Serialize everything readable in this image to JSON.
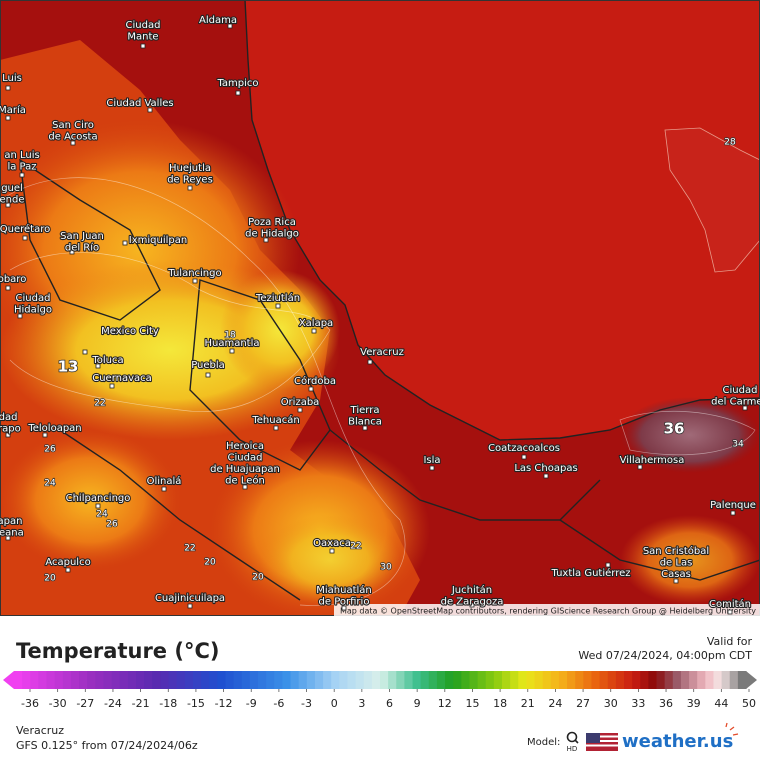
{
  "map": {
    "cities": [
      {
        "lines": [
          "Aldama"
        ]
      },
      {
        "lines": [
          "Ciudad",
          "Mante"
        ]
      },
      {
        "lines": [
          "Luis"
        ]
      },
      {
        "lines": [
          "María"
        ]
      },
      {
        "lines": [
          "Tampico"
        ]
      },
      {
        "lines": [
          "Ciudad Valles"
        ]
      },
      {
        "lines": [
          "San Ciro",
          "de Acosta"
        ]
      },
      {
        "lines": [
          "an Luis",
          "la Paz"
        ]
      },
      {
        "lines": [
          "Huejutla",
          "de Reyes"
        ]
      },
      {
        "lines": [
          "guel",
          "ende"
        ]
      },
      {
        "lines": [
          "Poza Rica",
          "de Hidalgo"
        ]
      },
      {
        "lines": [
          "Querétaro"
        ]
      },
      {
        "lines": [
          "San Juan",
          "del Río"
        ]
      },
      {
        "lines": [
          "Ixmiquilpan"
        ]
      },
      {
        "lines": [
          "Tulancingo"
        ]
      },
      {
        "lines": [
          "obaro"
        ]
      },
      {
        "lines": [
          "Teziutlán"
        ]
      },
      {
        "lines": [
          "Ciudad",
          "Hidalgo"
        ]
      },
      {
        "lines": [
          "Xalapa"
        ]
      },
      {
        "lines": [
          "Mexico City"
        ]
      },
      {
        "lines": [
          "Huamantla"
        ]
      },
      {
        "lines": [
          "Veracruz"
        ]
      },
      {
        "lines": [
          "Toluca"
        ]
      },
      {
        "lines": [
          "Puebla"
        ]
      },
      {
        "lines": [
          "Cuernavaca"
        ]
      },
      {
        "lines": [
          "Córdoba"
        ]
      },
      {
        "lines": [
          "Orizaba"
        ]
      },
      {
        "lines": [
          "Tierra",
          "Blanca"
        ]
      },
      {
        "lines": [
          "dad",
          "irapo"
        ]
      },
      {
        "lines": [
          "Tehuacán"
        ]
      },
      {
        "lines": [
          "Teloloapan"
        ]
      },
      {
        "lines": [
          "Heroica",
          "Ciudad",
          "de Huajuapan",
          "de León"
        ]
      },
      {
        "lines": [
          "Ciudad",
          "del Carmen"
        ]
      },
      {
        "lines": [
          "Coatzacoalcos"
        ]
      },
      {
        "lines": [
          "Isla"
        ]
      },
      {
        "lines": [
          "Villahermosa"
        ]
      },
      {
        "lines": [
          "Las Choapas"
        ]
      },
      {
        "lines": [
          "Olinalá"
        ]
      },
      {
        "lines": [
          "Chilpancingo"
        ]
      },
      {
        "lines": [
          "Palenque"
        ]
      },
      {
        "lines": [
          "apan",
          "leana"
        ]
      },
      {
        "lines": [
          "Oaxaca"
        ]
      },
      {
        "lines": [
          "San Cristóbal",
          "de Las",
          "Casas"
        ]
      },
      {
        "lines": [
          "Acapulco"
        ]
      },
      {
        "lines": [
          "Tuxtla Gutiérrez"
        ]
      },
      {
        "lines": [
          "Juchitán",
          "de Zaragoza"
        ]
      },
      {
        "lines": [
          "Miahuatlán",
          "de Porfirio"
        ]
      },
      {
        "lines": [
          "Cuajinicuilapa"
        ]
      },
      {
        "lines": [
          "Comitán"
        ]
      }
    ],
    "contour_labels": [
      28,
      18,
      13,
      36,
      34,
      22,
      26,
      24,
      24,
      26,
      22,
      20,
      20,
      22,
      30,
      20
    ],
    "attribution": "Map data © OpenStreetMap contributors, rendering GIScience Research Group @ Heidelberg University"
  },
  "legend": {
    "title": "Temperature (°C)",
    "ticks": [
      -36,
      -30,
      -27,
      -24,
      -21,
      -18,
      -15,
      -12,
      -9,
      -6,
      -3,
      0,
      3,
      6,
      9,
      12,
      15,
      18,
      21,
      24,
      27,
      30,
      33,
      36,
      39,
      44,
      50
    ]
  },
  "valid": {
    "label": "Valid for",
    "time": "Wed 07/24/2024, 04:00pm CDT"
  },
  "footer": {
    "region": "Veracruz",
    "model_run": "GFS 0.125° from  07/24/2024/06z",
    "model_label": "Model:",
    "model_badge": "HD",
    "brand": "weather.us"
  }
}
